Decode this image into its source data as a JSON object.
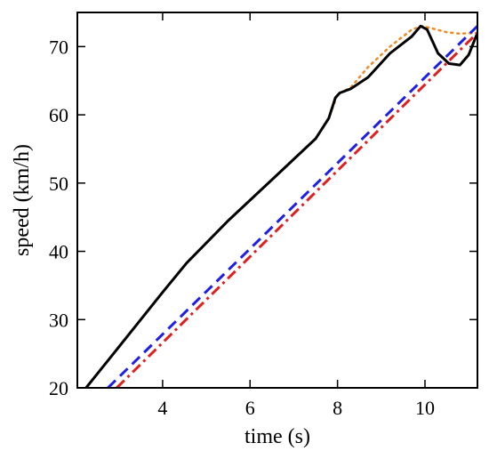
{
  "chart_data": {
    "type": "line",
    "title": "",
    "xlabel": "time (s)",
    "ylabel": "speed (km/h)",
    "xlim": [
      2.05,
      11.2
    ],
    "ylim": [
      20,
      75
    ],
    "xticks": [
      4,
      6,
      8,
      10
    ],
    "yticks": [
      20,
      30,
      40,
      50,
      60,
      70
    ],
    "xtick_labels": [
      "4",
      "6",
      "8",
      "10"
    ],
    "ytick_labels": [
      "20",
      "30",
      "40",
      "50",
      "60",
      "70"
    ],
    "grid": false,
    "legend": "none",
    "series": [
      {
        "color": "#f08a24",
        "style": "dotted",
        "x": [
          2.25,
          3.0,
          4.0,
          4.55,
          5.5,
          6.5,
          7.5,
          7.8,
          8.0,
          8.3,
          8.7,
          9.2,
          9.7,
          9.95,
          10.2,
          10.5,
          10.8,
          11.2
        ],
        "y": [
          20.0,
          26.0,
          34.0,
          38.3,
          44.5,
          50.5,
          56.5,
          59.5,
          63.0,
          64.0,
          67.0,
          70.0,
          72.5,
          73.0,
          72.6,
          72.1,
          71.9,
          72.0
        ]
      },
      {
        "color": "#000000",
        "style": "solid",
        "x": [
          2.25,
          3.0,
          4.0,
          4.55,
          5.5,
          6.5,
          7.5,
          7.8,
          7.95,
          8.05,
          8.3,
          8.7,
          9.2,
          9.7,
          9.9,
          10.05,
          10.3,
          10.55,
          10.8,
          11.0,
          11.2
        ],
        "y": [
          20.0,
          26.0,
          34.0,
          38.3,
          44.5,
          50.5,
          56.5,
          59.5,
          62.5,
          63.2,
          63.8,
          65.5,
          69.0,
          71.5,
          73.0,
          72.5,
          69.0,
          67.5,
          67.3,
          68.8,
          72.0
        ]
      },
      {
        "color": "#1f1fe6",
        "style": "dashed",
        "x": [
          2.75,
          11.2
        ],
        "y": [
          20.0,
          73.0
        ]
      },
      {
        "color": "#e01f1f",
        "style": "dashdot",
        "x": [
          2.95,
          11.2
        ],
        "y": [
          20.0,
          72.0
        ]
      }
    ]
  }
}
